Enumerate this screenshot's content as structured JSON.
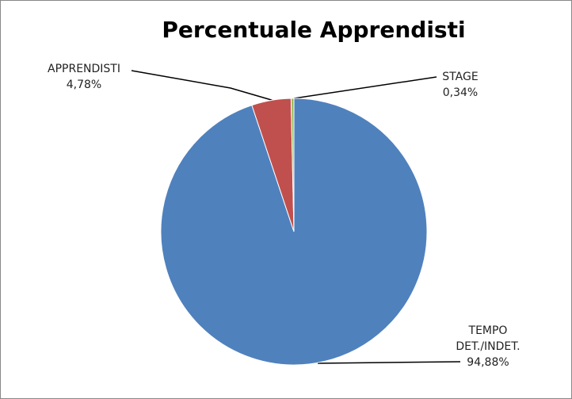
{
  "chart_data": {
    "type": "pie",
    "title": "Percentuale Apprendisti",
    "categories": [
      "TEMPO DET./INDET.",
      "APPRENDISTI",
      "STAGE"
    ],
    "values": [
      94.88,
      4.78,
      0.34
    ],
    "value_labels": [
      "94,88%",
      "4,78%",
      "0,34%"
    ],
    "colors": [
      "#4f81bd",
      "#c0504d",
      "#9bbb59"
    ]
  }
}
